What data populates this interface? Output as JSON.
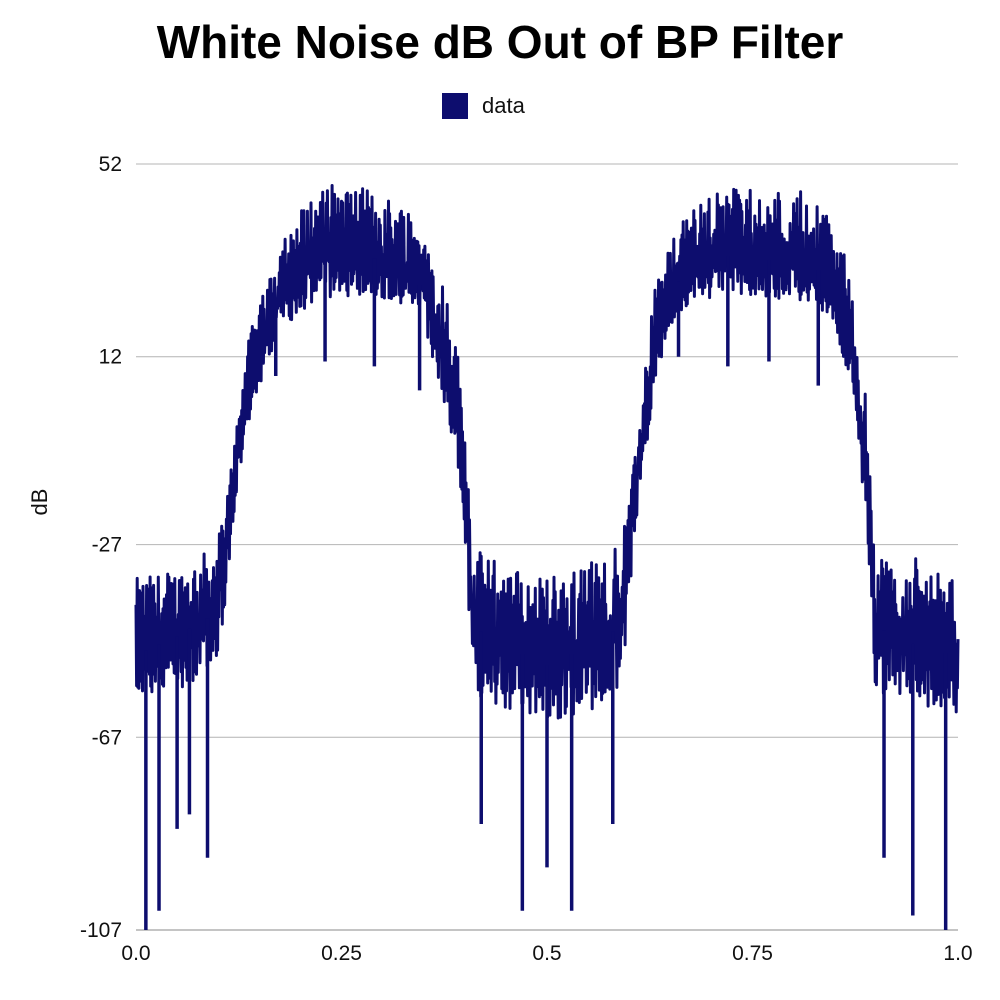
{
  "chart_data": {
    "type": "line",
    "title": "White Noise dB Out of BP Filter",
    "xlabel": "",
    "ylabel": "dB",
    "xlim": [
      0.0,
      1.0
    ],
    "ylim": [
      -107,
      52
    ],
    "x_ticks": [
      "0.0",
      "0.25",
      "0.5",
      "0.75",
      "1.0"
    ],
    "x_tick_values": [
      0.0,
      0.25,
      0.5,
      0.75,
      1.0
    ],
    "y_ticks": [
      "52",
      "12",
      "-27",
      "-67",
      "-107"
    ],
    "y_tick_values": [
      52,
      12,
      -27,
      -67,
      -107
    ],
    "grid": "horizontal",
    "legend": "top-center",
    "series": [
      {
        "name": "data",
        "color": "#0d0d6e",
        "envelope": {
          "x": [
            0.0,
            0.05,
            0.09,
            0.1,
            0.11,
            0.12,
            0.13,
            0.15,
            0.18,
            0.22,
            0.28,
            0.33,
            0.35,
            0.37,
            0.39,
            0.4,
            0.41,
            0.45,
            0.5,
            0.55,
            0.59,
            0.6,
            0.61,
            0.62,
            0.63,
            0.65,
            0.68,
            0.72,
            0.78,
            0.83,
            0.85,
            0.87,
            0.88,
            0.89,
            0.9,
            0.95,
            1.0
          ],
          "top": [
            -34,
            -32,
            -28,
            -25,
            -18,
            -5,
            10,
            25,
            38,
            47,
            47,
            44,
            40,
            30,
            15,
            0,
            -28,
            -31,
            -34,
            -31,
            -28,
            -18,
            -5,
            10,
            25,
            36,
            44,
            47,
            47,
            44,
            40,
            30,
            15,
            0,
            -28,
            -32,
            -34
          ],
          "mid": [
            -50,
            -46,
            -42,
            -38,
            -28,
            -12,
            0,
            14,
            26,
            32,
            33,
            30,
            26,
            14,
            0,
            -14,
            -44,
            -48,
            -52,
            -48,
            -44,
            -28,
            -12,
            0,
            14,
            26,
            31,
            33,
            32,
            30,
            26,
            14,
            0,
            -14,
            -44,
            -48,
            -50
          ],
          "bottom": [
            -60,
            -57,
            -54,
            -50,
            -38,
            -20,
            -8,
            6,
            18,
            24,
            25,
            22,
            18,
            5,
            -8,
            -25,
            -58,
            -62,
            -64,
            -62,
            -58,
            -38,
            -20,
            -8,
            5,
            18,
            23,
            25,
            24,
            22,
            18,
            5,
            -8,
            -25,
            -58,
            -60,
            -62
          ]
        },
        "dips": [
          {
            "x": 0.012,
            "y": -107
          },
          {
            "x": 0.028,
            "y": -103
          },
          {
            "x": 0.05,
            "y": -86
          },
          {
            "x": 0.065,
            "y": -83
          },
          {
            "x": 0.087,
            "y": -92
          },
          {
            "x": 0.17,
            "y": 8
          },
          {
            "x": 0.23,
            "y": 11
          },
          {
            "x": 0.29,
            "y": 10
          },
          {
            "x": 0.345,
            "y": 5
          },
          {
            "x": 0.42,
            "y": -85
          },
          {
            "x": 0.47,
            "y": -103
          },
          {
            "x": 0.5,
            "y": -94
          },
          {
            "x": 0.53,
            "y": -103
          },
          {
            "x": 0.58,
            "y": -85
          },
          {
            "x": 0.66,
            "y": 12
          },
          {
            "x": 0.72,
            "y": 10
          },
          {
            "x": 0.77,
            "y": 11
          },
          {
            "x": 0.83,
            "y": 6
          },
          {
            "x": 0.91,
            "y": -92
          },
          {
            "x": 0.945,
            "y": -104
          },
          {
            "x": 0.985,
            "y": -107
          }
        ]
      }
    ]
  }
}
